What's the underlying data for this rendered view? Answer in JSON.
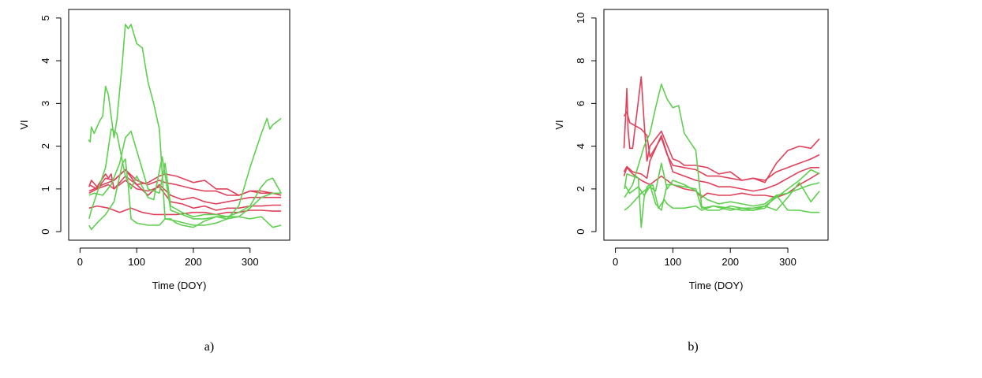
{
  "figure": {
    "captions": [
      "a)",
      "b)"
    ]
  },
  "colors": {
    "group_red": "#E0405A",
    "group_green": "#5FCF4F",
    "axis": "#000000"
  },
  "chart_data": [
    {
      "type": "line",
      "panel": "a)",
      "title": "",
      "xlabel": "Time (DOY)",
      "ylabel": "VI",
      "xlim": [
        -20,
        370
      ],
      "ylim": [
        -0.2,
        5.2
      ],
      "xticks": [
        0,
        100,
        200,
        300
      ],
      "yticks": [
        0,
        1,
        2,
        3,
        4,
        5
      ],
      "grid": false,
      "legend": "none",
      "series": [
        {
          "color": "red",
          "x": [
            16,
            20,
            30,
            45,
            50,
            55,
            60,
            80,
            100,
            120,
            140,
            150,
            170,
            200,
            220,
            240,
            260,
            280,
            300,
            320,
            340,
            355
          ],
          "y": [
            1.05,
            1.2,
            1.05,
            1.35,
            1.25,
            1.35,
            1.0,
            1.3,
            1.1,
            1.15,
            1.3,
            1.35,
            1.3,
            1.15,
            1.2,
            1.0,
            1.0,
            0.85,
            0.95,
            0.95,
            0.9,
            0.9
          ]
        },
        {
          "color": "red",
          "x": [
            16,
            25,
            40,
            50,
            60,
            80,
            100,
            120,
            140,
            150,
            170,
            200,
            220,
            240,
            260,
            280,
            300,
            320,
            340,
            355
          ],
          "y": [
            0.95,
            1.0,
            1.1,
            1.15,
            1.2,
            1.45,
            1.2,
            1.1,
            1.2,
            1.15,
            1.1,
            1.0,
            0.95,
            0.95,
            0.85,
            0.85,
            0.95,
            0.9,
            0.9,
            0.85
          ]
        },
        {
          "color": "red",
          "x": [
            16,
            30,
            45,
            60,
            80,
            100,
            120,
            140,
            160,
            180,
            200,
            220,
            240,
            260,
            280,
            300,
            320,
            340,
            355
          ],
          "y": [
            1.1,
            1.0,
            1.25,
            1.2,
            1.45,
            1.1,
            0.85,
            1.1,
            0.85,
            0.75,
            0.8,
            0.7,
            0.65,
            0.7,
            0.75,
            0.8,
            0.8,
            0.8,
            0.8
          ]
        },
        {
          "color": "red",
          "x": [
            16,
            30,
            50,
            60,
            80,
            100,
            120,
            140,
            160,
            180,
            200,
            220,
            240,
            260,
            280,
            300,
            320,
            340,
            355
          ],
          "y": [
            0.9,
            1.0,
            1.1,
            1.0,
            1.2,
            1.0,
            0.95,
            1.05,
            0.7,
            0.65,
            0.55,
            0.6,
            0.5,
            0.55,
            0.55,
            0.6,
            0.6,
            0.62,
            0.62
          ]
        },
        {
          "color": "red",
          "x": [
            16,
            30,
            50,
            70,
            90,
            110,
            130,
            150,
            170,
            200,
            220,
            240,
            260,
            280,
            300,
            320,
            340,
            355
          ],
          "y": [
            0.55,
            0.6,
            0.55,
            0.45,
            0.55,
            0.45,
            0.4,
            0.4,
            0.4,
            0.45,
            0.45,
            0.4,
            0.45,
            0.45,
            0.5,
            0.5,
            0.48,
            0.48
          ]
        },
        {
          "color": "green",
          "x": [
            15,
            18,
            20,
            25,
            35,
            40,
            45,
            50,
            60,
            65,
            75,
            80,
            85,
            90,
            100,
            110,
            120,
            130,
            140,
            150,
            160,
            170,
            180,
            200,
            220,
            240,
            260,
            280,
            300,
            320,
            330,
            335,
            340,
            355
          ],
          "y": [
            2.15,
            2.1,
            2.45,
            2.3,
            2.6,
            2.7,
            3.4,
            3.2,
            2.2,
            2.6,
            4.0,
            4.85,
            4.75,
            4.85,
            4.4,
            4.3,
            3.5,
            3.0,
            2.4,
            0.3,
            0.3,
            0.2,
            0.15,
            0.1,
            0.25,
            0.35,
            0.3,
            0.6,
            1.5,
            2.3,
            2.65,
            2.4,
            2.5,
            2.65
          ]
        },
        {
          "color": "green",
          "x": [
            16,
            20,
            30,
            45,
            55,
            65,
            80,
            90,
            100,
            120,
            130,
            145,
            160,
            180,
            200,
            220,
            240,
            260,
            280,
            300,
            320,
            330,
            340,
            355
          ],
          "y": [
            0.3,
            0.5,
            0.9,
            1.5,
            2.4,
            2.3,
            1.3,
            1.0,
            1.3,
            0.8,
            0.75,
            1.75,
            0.5,
            0.4,
            0.3,
            0.3,
            0.35,
            0.35,
            0.45,
            0.6,
            1.05,
            1.2,
            1.25,
            0.9
          ]
        },
        {
          "color": "green",
          "x": [
            16,
            25,
            40,
            55,
            70,
            80,
            90,
            100,
            120,
            140,
            150,
            160,
            180,
            200,
            220,
            240,
            260,
            280,
            300,
            320,
            340,
            355
          ],
          "y": [
            0.85,
            0.9,
            0.85,
            1.1,
            1.6,
            2.2,
            2.35,
            1.9,
            1.0,
            0.9,
            1.6,
            0.6,
            0.45,
            0.35,
            0.4,
            0.4,
            0.35,
            0.35,
            0.55,
            0.8,
            0.9,
            0.9
          ]
        },
        {
          "color": "green",
          "x": [
            16,
            20,
            30,
            45,
            60,
            75,
            80,
            85,
            90,
            100,
            120,
            140,
            150,
            170,
            200,
            220,
            240,
            260,
            280,
            300,
            320,
            340,
            355
          ],
          "y": [
            0.15,
            0.05,
            0.2,
            0.4,
            0.7,
            1.6,
            1.7,
            1.1,
            0.3,
            0.2,
            0.15,
            0.15,
            0.3,
            0.25,
            0.15,
            0.15,
            0.2,
            0.3,
            0.35,
            0.3,
            0.35,
            0.1,
            0.15
          ]
        }
      ]
    },
    {
      "type": "line",
      "panel": "b)",
      "title": "",
      "xlabel": "Time (DOY)",
      "ylabel": "VI",
      "xlim": [
        -20,
        370
      ],
      "ylim": [
        -0.4,
        10.4
      ],
      "xticks": [
        0,
        100,
        200,
        300
      ],
      "yticks": [
        0,
        2,
        4,
        6,
        8,
        10
      ],
      "grid": false,
      "legend": "none",
      "series": [
        {
          "color": "red",
          "x": [
            15,
            18,
            20,
            22,
            25,
            30,
            45,
            50,
            55,
            60,
            80,
            100,
            110,
            120,
            140,
            160,
            180,
            200,
            220,
            240,
            260,
            280,
            300,
            320,
            340,
            355
          ],
          "y": [
            3.9,
            5.5,
            6.7,
            4.8,
            3.9,
            3.9,
            7.25,
            5.1,
            3.3,
            4.0,
            4.7,
            3.4,
            3.3,
            3.1,
            3.1,
            3.0,
            2.7,
            2.8,
            2.4,
            2.5,
            2.3,
            3.2,
            3.8,
            4.0,
            3.9,
            4.35
          ]
        },
        {
          "color": "red",
          "x": [
            15,
            20,
            25,
            45,
            55,
            60,
            80,
            90,
            100,
            120,
            140,
            160,
            180,
            200,
            220,
            240,
            260,
            280,
            300,
            320,
            340,
            355
          ],
          "y": [
            5.4,
            5.6,
            5.1,
            4.8,
            4.5,
            3.5,
            4.4,
            3.6,
            3.1,
            3.0,
            2.9,
            2.6,
            2.6,
            2.5,
            2.4,
            2.5,
            2.4,
            2.8,
            3.0,
            3.2,
            3.4,
            3.6
          ]
        },
        {
          "color": "red",
          "x": [
            15,
            20,
            30,
            45,
            55,
            60,
            80,
            100,
            120,
            140,
            160,
            180,
            200,
            220,
            240,
            260,
            280,
            300,
            320,
            340,
            355
          ],
          "y": [
            2.8,
            3.05,
            2.8,
            2.7,
            2.5,
            3.3,
            4.5,
            2.8,
            2.6,
            2.4,
            2.3,
            2.1,
            2.1,
            2.0,
            1.9,
            2.0,
            2.2,
            2.5,
            2.8,
            3.0,
            3.0
          ]
        },
        {
          "color": "red",
          "x": [
            15,
            20,
            30,
            45,
            60,
            80,
            100,
            120,
            140,
            150,
            160,
            180,
            200,
            220,
            240,
            260,
            280,
            300,
            320,
            340,
            355
          ],
          "y": [
            2.6,
            3.0,
            2.7,
            2.4,
            2.2,
            2.6,
            2.2,
            2.0,
            1.9,
            1.6,
            1.8,
            1.7,
            1.7,
            1.8,
            1.7,
            1.7,
            1.6,
            1.8,
            2.2,
            2.5,
            2.75
          ]
        },
        {
          "color": "green",
          "x": [
            16,
            30,
            50,
            60,
            70,
            80,
            90,
            100,
            110,
            120,
            140,
            150,
            160,
            180,
            200,
            220,
            240,
            260,
            280,
            300,
            320,
            340,
            355
          ],
          "y": [
            1.6,
            2.2,
            4.0,
            4.6,
            5.8,
            6.9,
            6.2,
            5.8,
            5.9,
            4.6,
            3.8,
            1.2,
            1.0,
            1.0,
            1.2,
            1.1,
            1.1,
            1.2,
            1.6,
            2.0,
            2.4,
            2.9,
            2.7
          ]
        },
        {
          "color": "green",
          "x": [
            16,
            25,
            40,
            50,
            60,
            70,
            80,
            90,
            100,
            120,
            140,
            160,
            180,
            200,
            220,
            240,
            260,
            280,
            300,
            320,
            340,
            350,
            355
          ],
          "y": [
            2.2,
            1.8,
            2.1,
            1.7,
            2.1,
            1.9,
            3.2,
            2.0,
            2.4,
            2.2,
            1.9,
            1.5,
            1.3,
            1.4,
            1.3,
            1.2,
            1.3,
            1.7,
            1.8,
            2.0,
            2.2,
            2.25,
            2.3
          ]
        },
        {
          "color": "green",
          "x": [
            16,
            25,
            35,
            45,
            55,
            65,
            75,
            85,
            90,
            100,
            120,
            140,
            150,
            170,
            200,
            220,
            240,
            260,
            280,
            300,
            320,
            340,
            355
          ],
          "y": [
            1.0,
            1.2,
            1.5,
            1.8,
            2.0,
            2.2,
            1.1,
            1.5,
            1.3,
            1.1,
            1.1,
            1.2,
            1.0,
            1.2,
            1.0,
            1.1,
            1.0,
            1.1,
            1.7,
            1.0,
            1.0,
            0.9,
            0.9
          ]
        },
        {
          "color": "green",
          "x": [
            16,
            20,
            30,
            40,
            45,
            50,
            55,
            60,
            70,
            80,
            90,
            100,
            120,
            140,
            150,
            170,
            200,
            220,
            240,
            260,
            280,
            300,
            320,
            340,
            355
          ],
          "y": [
            2.0,
            2.7,
            2.6,
            2.5,
            0.2,
            1.6,
            2.1,
            2.2,
            1.3,
            1.0,
            2.2,
            2.2,
            2.1,
            2.0,
            1.1,
            1.2,
            1.1,
            1.0,
            1.0,
            1.2,
            1.0,
            1.6,
            2.3,
            1.4,
            1.9
          ]
        }
      ]
    }
  ]
}
